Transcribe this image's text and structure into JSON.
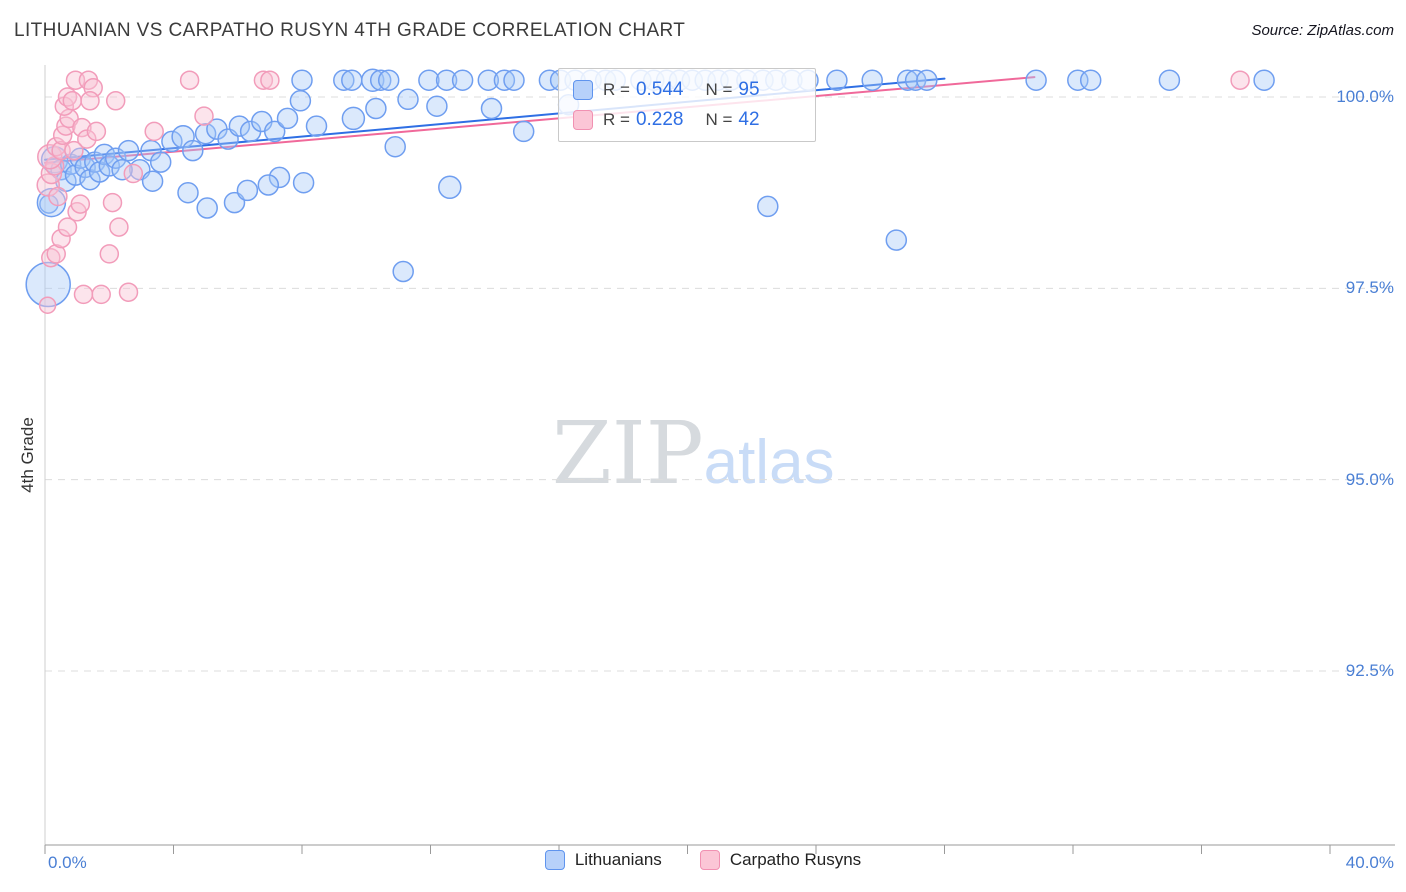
{
  "header": {
    "title": "LITHUANIAN VS CARPATHO RUSYN 4TH GRADE CORRELATION CHART",
    "source": "Source: ZipAtlas.com"
  },
  "watermark": {
    "zip": "ZIP",
    "atlas": "atlas"
  },
  "legend_box": {
    "entries": [
      {
        "series": "Lithuanians",
        "r_label": "R =",
        "r_value": "0.544",
        "n_label": "N =",
        "n_value": "95"
      },
      {
        "series": "Carpatho Rusyns",
        "r_label": "R =",
        "r_value": "0.228",
        "n_label": "N =",
        "n_value": "42"
      }
    ]
  },
  "bottom_legend": {
    "items": [
      {
        "label": "Lithuanians"
      },
      {
        "label": "Carpatho Rusyns"
      }
    ]
  },
  "colors": {
    "axis_text_blue": "#4a7fd4",
    "grid": "#dcdcdc",
    "axis_line": "#9a9a9a",
    "blue_stroke": "#6f9ef0",
    "blue_fill": "rgba(164,199,247,0.40)",
    "pink_stroke": "#f29cba",
    "pink_fill": "rgba(249,196,212,0.45)",
    "trend_blue": "#2f6fe4",
    "trend_pink": "#f0699a"
  },
  "chart_data": {
    "type": "scatter",
    "title": "LITHUANIAN VS CARPATHO RUSYN 4TH GRADE CORRELATION CHART",
    "xlabel": "",
    "ylabel": "4th Grade",
    "xlim": [
      0,
      40
    ],
    "ylim": [
      90.2,
      100.45
    ],
    "grid": "dashed-horizontal",
    "legend_position": "top-center",
    "x_tick_labels": {
      "min": "0.0%",
      "max": "40.0%"
    },
    "x_minor_tick_values": [
      0,
      4,
      8,
      12,
      16,
      20,
      24,
      28,
      32,
      36,
      40
    ],
    "y_ticks": [
      {
        "value": 100.0,
        "label": "100.0%"
      },
      {
        "value": 97.5,
        "label": "97.5%"
      },
      {
        "value": 95.0,
        "label": "95.0%"
      },
      {
        "value": 92.5,
        "label": "92.5%"
      }
    ],
    "series": [
      {
        "name": "Lithuanians",
        "R": 0.544,
        "N": 95,
        "stroke": "#6f9ef0",
        "fill": "rgba(164,199,247,0.40)",
        "default_r": 10,
        "points": [
          [
            8.0,
            100.22
          ],
          [
            9.3,
            100.22
          ],
          [
            9.55,
            100.22
          ],
          [
            10.2,
            100.22,
            11
          ],
          [
            10.45,
            100.22
          ],
          [
            10.7,
            100.22
          ],
          [
            11.95,
            100.22
          ],
          [
            12.5,
            100.22
          ],
          [
            13.0,
            100.22
          ],
          [
            13.8,
            100.22
          ],
          [
            14.3,
            100.22
          ],
          [
            14.6,
            100.22
          ],
          [
            15.7,
            100.22
          ],
          [
            16.05,
            100.22
          ],
          [
            16.5,
            100.22
          ],
          [
            17.0,
            100.22
          ],
          [
            17.45,
            100.22
          ],
          [
            17.75,
            100.22
          ],
          [
            18.55,
            100.22
          ],
          [
            18.95,
            100.22
          ],
          [
            19.35,
            100.22
          ],
          [
            19.75,
            100.22
          ],
          [
            20.15,
            100.22
          ],
          [
            20.55,
            100.22
          ],
          [
            20.95,
            100.22
          ],
          [
            21.35,
            100.22
          ],
          [
            21.85,
            100.22
          ],
          [
            22.35,
            100.22
          ],
          [
            22.75,
            100.22
          ],
          [
            23.25,
            100.22
          ],
          [
            23.75,
            100.22
          ],
          [
            24.65,
            100.22
          ],
          [
            25.75,
            100.22
          ],
          [
            26.85,
            100.22
          ],
          [
            27.1,
            100.22
          ],
          [
            27.45,
            100.22
          ],
          [
            30.85,
            100.22
          ],
          [
            32.15,
            100.22
          ],
          [
            32.55,
            100.22
          ],
          [
            35.0,
            100.22
          ],
          [
            37.95,
            100.22
          ],
          [
            7.95,
            99.95
          ],
          [
            9.6,
            99.72,
            11
          ],
          [
            10.3,
            99.85
          ],
          [
            11.3,
            99.97
          ],
          [
            12.2,
            99.88
          ],
          [
            13.9,
            99.85
          ],
          [
            16.3,
            99.9
          ],
          [
            2.95,
            99.05
          ],
          [
            3.3,
            99.3
          ],
          [
            3.35,
            98.9
          ],
          [
            3.6,
            99.15
          ],
          [
            3.95,
            99.42
          ],
          [
            4.3,
            99.48,
            11
          ],
          [
            4.6,
            99.3
          ],
          [
            5.0,
            99.52
          ],
          [
            5.05,
            98.55
          ],
          [
            5.35,
            99.58
          ],
          [
            5.7,
            99.45
          ],
          [
            5.9,
            98.62
          ],
          [
            6.05,
            99.62
          ],
          [
            6.3,
            98.78
          ],
          [
            6.4,
            99.55
          ],
          [
            6.75,
            99.68
          ],
          [
            7.15,
            99.55
          ],
          [
            7.3,
            98.95
          ],
          [
            7.55,
            99.72
          ],
          [
            8.05,
            98.88
          ],
          [
            8.45,
            99.62
          ],
          [
            0.1,
            97.55,
            22
          ],
          [
            0.12,
            98.6,
            9
          ],
          [
            0.2,
            98.62,
            14
          ],
          [
            0.3,
            99.18,
            13
          ],
          [
            0.5,
            99.05
          ],
          [
            0.65,
            98.9
          ],
          [
            0.8,
            99.12
          ],
          [
            0.95,
            98.98
          ],
          [
            1.1,
            99.2
          ],
          [
            1.25,
            99.08
          ],
          [
            1.4,
            98.92
          ],
          [
            1.55,
            99.15
          ],
          [
            1.7,
            99.02
          ],
          [
            1.85,
            99.25
          ],
          [
            2.0,
            99.1
          ],
          [
            2.2,
            99.2
          ],
          [
            2.4,
            99.05
          ],
          [
            2.6,
            99.3
          ],
          [
            4.45,
            98.75
          ],
          [
            6.95,
            98.85
          ],
          [
            10.9,
            99.35
          ],
          [
            11.15,
            97.72
          ],
          [
            12.6,
            98.82,
            11
          ],
          [
            14.9,
            99.55
          ],
          [
            22.5,
            98.57
          ],
          [
            26.5,
            98.13
          ]
        ]
      },
      {
        "name": "Carpatho Rusyns",
        "R": 0.228,
        "N": 42,
        "stroke": "#f29cba",
        "fill": "rgba(249,196,212,0.45)",
        "default_r": 9,
        "points": [
          [
            0.08,
            97.28,
            8
          ],
          [
            0.18,
            97.9
          ],
          [
            0.35,
            97.95
          ],
          [
            0.5,
            98.15
          ],
          [
            0.7,
            98.3
          ],
          [
            1.0,
            98.5
          ],
          [
            0.1,
            98.85,
            11
          ],
          [
            0.2,
            99.0,
            10
          ],
          [
            0.3,
            99.1
          ],
          [
            0.15,
            99.22,
            12
          ],
          [
            0.35,
            99.35
          ],
          [
            0.5,
            99.3
          ],
          [
            0.55,
            99.5
          ],
          [
            0.65,
            99.62
          ],
          [
            0.75,
            99.72
          ],
          [
            0.6,
            99.88
          ],
          [
            0.7,
            100.0
          ],
          [
            0.85,
            99.95
          ],
          [
            0.95,
            100.22
          ],
          [
            1.35,
            100.22
          ],
          [
            1.5,
            100.12
          ],
          [
            1.15,
            99.6
          ],
          [
            1.3,
            99.45
          ],
          [
            1.6,
            99.55
          ],
          [
            1.2,
            97.42
          ],
          [
            1.75,
            97.42
          ],
          [
            2.6,
            97.45
          ],
          [
            1.1,
            98.6
          ],
          [
            2.1,
            98.62
          ],
          [
            2.2,
            99.95
          ],
          [
            1.4,
            99.95
          ],
          [
            3.4,
            99.55
          ],
          [
            4.5,
            100.22
          ],
          [
            6.8,
            100.22
          ],
          [
            7.0,
            100.22
          ],
          [
            4.95,
            99.75
          ],
          [
            2.3,
            98.3
          ],
          [
            0.4,
            98.7
          ],
          [
            0.9,
            99.3
          ],
          [
            2.0,
            97.95
          ],
          [
            37.2,
            100.22
          ],
          [
            2.75,
            99.0
          ]
        ]
      }
    ],
    "trend_lines": [
      {
        "series": "Carpatho Rusyns",
        "x1": 0,
        "y1": 99.14,
        "x2": 30.8,
        "y2": 100.26,
        "color": "#f0699a"
      },
      {
        "series": "Lithuanians",
        "x1": 0,
        "y1": 99.18,
        "x2": 28.0,
        "y2": 100.24,
        "color": "#2f6fe4"
      }
    ]
  }
}
